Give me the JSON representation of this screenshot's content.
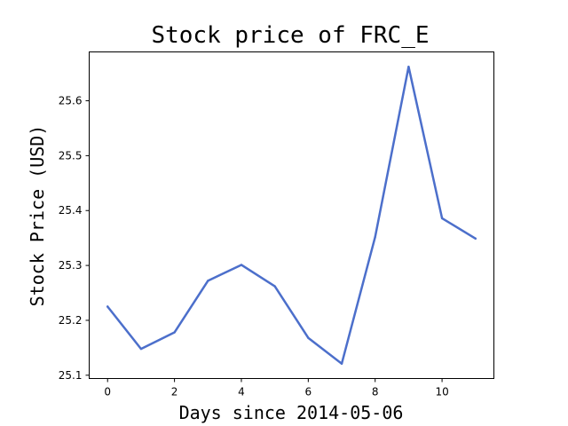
{
  "chart_data": {
    "type": "line",
    "title": "Stock price of FRC_E",
    "xlabel": "Days since 2014-05-06",
    "ylabel": "Stock Price (USD)",
    "x": [
      0,
      1,
      2,
      3,
      4,
      5,
      6,
      7,
      8,
      9,
      10,
      11
    ],
    "series": [
      {
        "values": [
          25.225,
          25.148,
          25.178,
          25.272,
          25.301,
          25.262,
          25.168,
          25.121,
          25.352,
          25.662,
          25.386,
          25.349
        ],
        "color": "#4c6fcb"
      }
    ],
    "xlim": [
      -0.55,
      11.55
    ],
    "ylim": [
      25.094,
      25.689
    ],
    "xticks": [
      0,
      2,
      4,
      6,
      8,
      10
    ],
    "yticks": [
      25.1,
      25.2,
      25.3,
      25.4,
      25.5,
      25.6
    ],
    "xtick_labels": [
      "0",
      "2",
      "4",
      "6",
      "8",
      "10"
    ],
    "ytick_labels": [
      "25.1",
      "25.2",
      "25.3",
      "25.4",
      "25.5",
      "25.6"
    ],
    "grid": false,
    "legend": false
  }
}
